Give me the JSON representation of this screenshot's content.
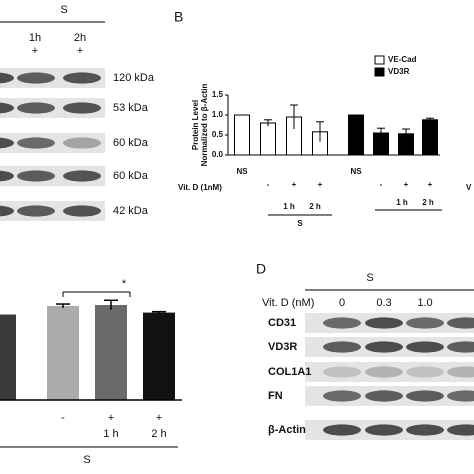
{
  "panel_a": {
    "group": "S",
    "times": [
      "1h",
      "2h"
    ],
    "treatments": [
      "+",
      "+"
    ],
    "bands": [
      "120 kDa",
      "53 kDa",
      "60 kDa",
      "60 kDa",
      "42 kDa"
    ]
  },
  "panel_b": {
    "type": "bar",
    "letter": "B",
    "y_label": [
      "Protein Level",
      "Normalized to β-Actin"
    ],
    "ylim": [
      0,
      1.5
    ],
    "yticks": [
      {
        "value": 0,
        "label": "0.0"
      },
      {
        "value": 0.5,
        "label": "0.5"
      },
      {
        "value": 1.0,
        "label": "1.0"
      },
      {
        "value": 1.5,
        "label": "1.5"
      }
    ],
    "categories": [
      "NS",
      "-",
      "+",
      "+"
    ],
    "series": [
      {
        "name": "VE-Cad",
        "color": "#ffffff",
        "values": [
          1.0,
          0.8,
          0.95,
          0.58
        ],
        "errors": [
          null,
          0.08,
          0.3,
          0.25
        ]
      },
      {
        "name": "VD3R",
        "color": "#000000",
        "values": [
          1.0,
          0.55,
          0.53,
          0.88
        ],
        "errors": [
          null,
          0.12,
          0.12,
          0.04
        ]
      }
    ],
    "treatment_label": "Vit. D (1nM)",
    "times": [
      "1 h",
      "2 h"
    ],
    "group": "S",
    "cut_label": "V"
  },
  "panel_c": {
    "type": "bar",
    "ylim": [
      0,
      1.2
    ],
    "values": [
      0.9,
      0.99,
      1.0,
      0.92
    ],
    "errors": [
      null,
      0.02,
      0.05,
      0.01
    ],
    "colors": [
      "#3a3a3a",
      "#ababab",
      "#6a6a6a",
      "#111111"
    ],
    "categories": [
      null,
      "-",
      "+",
      "+"
    ],
    "times": [
      "1 h",
      "2 h"
    ],
    "group": "S",
    "annotation": "*"
  },
  "panel_d": {
    "letter": "D",
    "group": "S",
    "treatment_label": "Vit. D (nM)",
    "doses": [
      "0",
      "0.3",
      "1.0"
    ],
    "rows": [
      "CD31",
      "VD3R",
      "COL1A1",
      "FN",
      "β-Actin"
    ]
  }
}
